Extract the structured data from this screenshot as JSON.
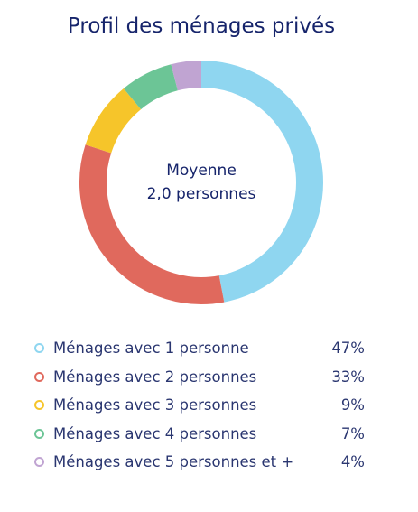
{
  "chart_data": {
    "type": "pie",
    "title": "Profil des ménages privés",
    "center_label": [
      "Moyenne",
      "2,0 personnes"
    ],
    "categories": [
      "Ménages avec 1 personne",
      "Ménages avec 2 personnes",
      "Ménages avec 3 personnes",
      "Ménages avec 4 personnes",
      "Ménages avec 5 personnes et +"
    ],
    "values": [
      47,
      33,
      9,
      7,
      4
    ],
    "value_labels": [
      "47%",
      "33%",
      "9%",
      "7%",
      "4%"
    ],
    "colors": [
      "#8fd6f0",
      "#e0695d",
      "#f6c52a",
      "#6cc596",
      "#c0a4d2"
    ],
    "legend_position": "bottom"
  }
}
